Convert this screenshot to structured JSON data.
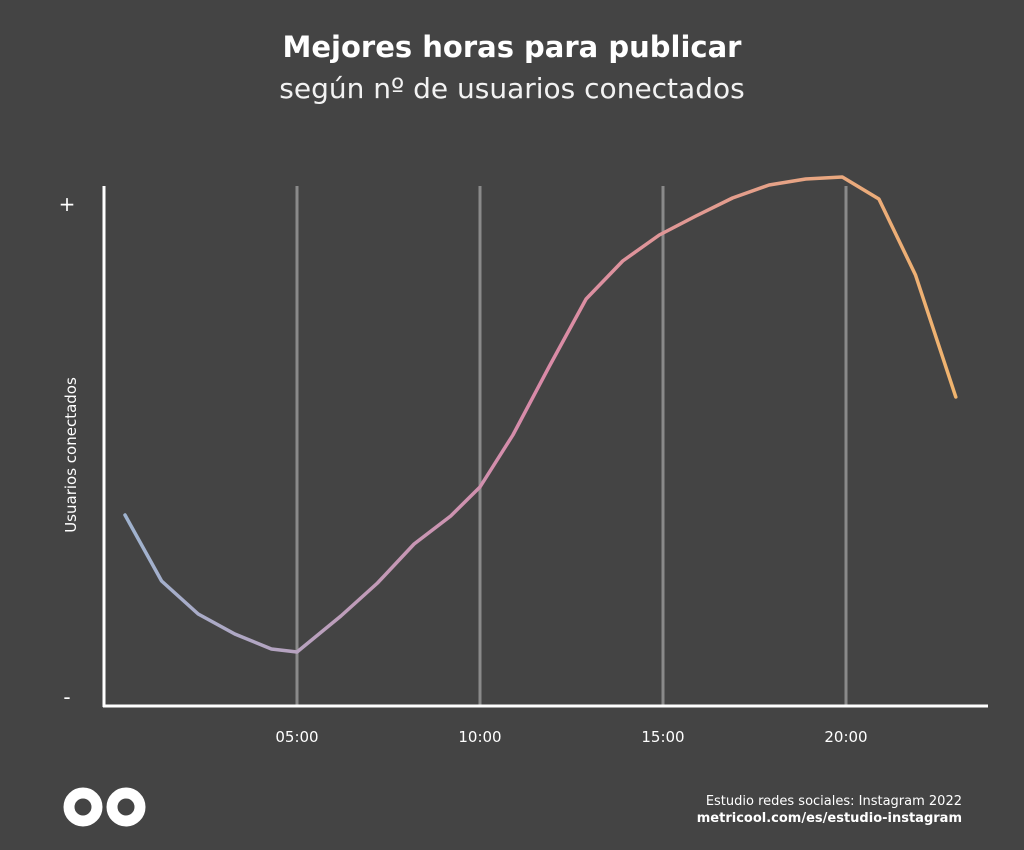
{
  "header": {
    "title": "Mejores horas para publicar",
    "subtitle": "según nº de usuarios conectados"
  },
  "footer": {
    "source": "Estudio redes sociales: Instagram 2022",
    "url": "metricool.com/es/estudio-instagram"
  },
  "logo": {
    "icon": "metricool-infinity-icon"
  },
  "colors": {
    "background": "#444444",
    "axis": "#ffffff",
    "gridline": "#8a8a8a",
    "line_start": "#9fb3cf",
    "line_mid": "#d98aa8",
    "line_end": "#f0b46e"
  },
  "chart_data": {
    "type": "line",
    "title": "Mejores horas para publicar",
    "subtitle": "según nº de usuarios conectados",
    "xlabel": "",
    "ylabel": "Usuarios conectados",
    "y_tick_labels": {
      "top": "+",
      "bottom": "-"
    },
    "x_ticks": [
      {
        "value": 5,
        "label": "05:00"
      },
      {
        "value": 10,
        "label": "10:00"
      },
      {
        "value": 15,
        "label": "15:00"
      },
      {
        "value": 20,
        "label": "20:00"
      }
    ],
    "xlim": [
      0,
      24
    ],
    "ylim": [
      0,
      100
    ],
    "grid": "vertical at x ticks",
    "series": [
      {
        "x": [
          0.3,
          1.3,
          2.3,
          3.3,
          4.3,
          5,
          6.2,
          7.2,
          8.2,
          9.2,
          10,
          10.9,
          11.9,
          12.9,
          13.9,
          14.9,
          15.9,
          16.9,
          17.9,
          18.9,
          19.9,
          20.9,
          21.9,
          23
        ],
        "y": [
          34.6,
          21.4,
          14.8,
          10.8,
          7.8,
          7.2,
          14.4,
          21.0,
          28.8,
          34.4,
          40.2,
          50.6,
          64.4,
          77.8,
          85.4,
          90.6,
          94.4,
          98.0,
          100.6,
          101.8,
          102.2,
          97.8,
          82.6,
          58.2
        ]
      }
    ]
  }
}
